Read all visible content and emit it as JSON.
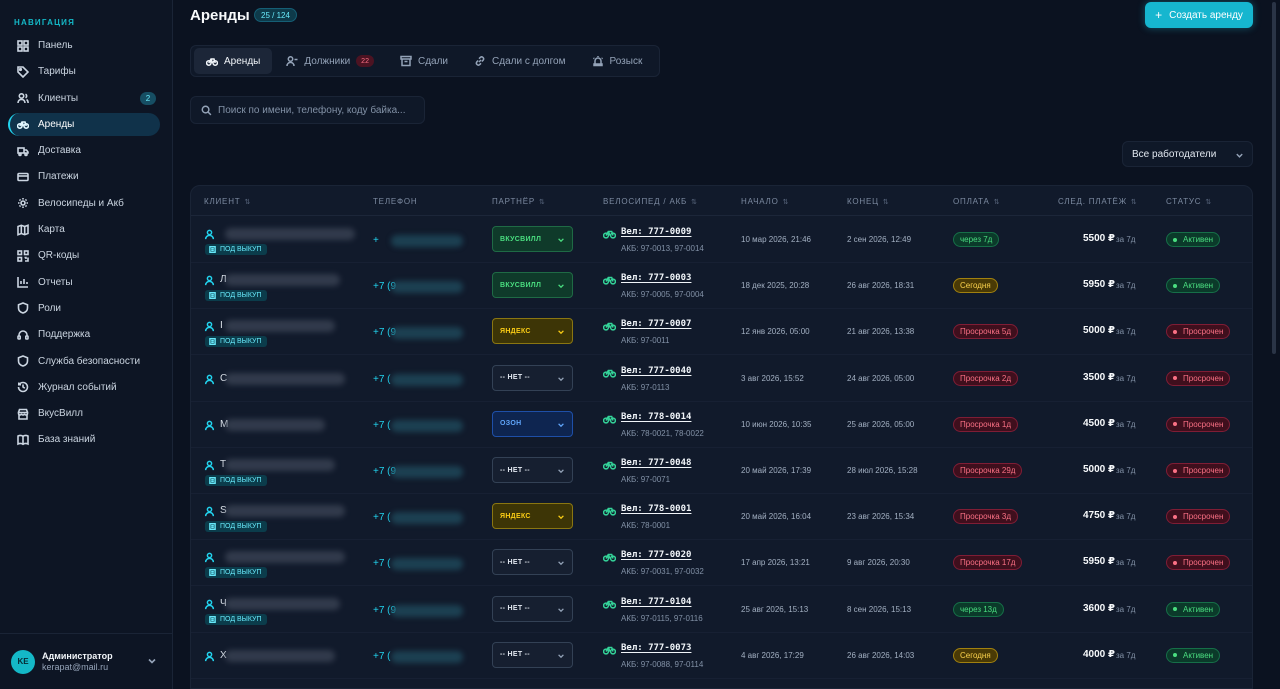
{
  "sidebar": {
    "title": "НАВИГАЦИЯ",
    "items": [
      {
        "label": "Панель",
        "icon": "grid-icon"
      },
      {
        "label": "Тарифы",
        "icon": "tag-icon"
      },
      {
        "label": "Клиенты",
        "icon": "users-icon",
        "badge": "2"
      },
      {
        "label": "Аренды",
        "icon": "bike-icon",
        "active": true
      },
      {
        "label": "Доставка",
        "icon": "truck-icon"
      },
      {
        "label": "Платежи",
        "icon": "card-icon"
      },
      {
        "label": "Велосипеды и Акб",
        "icon": "gear-icon"
      },
      {
        "label": "Карта",
        "icon": "map-icon"
      },
      {
        "label": "QR-коды",
        "icon": "qr-icon"
      },
      {
        "label": "Отчеты",
        "icon": "chart-icon"
      },
      {
        "label": "Роли",
        "icon": "shield-icon"
      },
      {
        "label": "Поддержка",
        "icon": "headset-icon"
      },
      {
        "label": "Служба безопасности",
        "icon": "shield-icon"
      },
      {
        "label": "Журнал событий",
        "icon": "history-icon"
      },
      {
        "label": "ВкусВилл",
        "icon": "store-icon"
      },
      {
        "label": "База знаний",
        "icon": "book-icon"
      }
    ],
    "user": {
      "initials": "KE",
      "name": "Администратор",
      "email": "kerapat@mail.ru"
    }
  },
  "header": {
    "title": "Аренды",
    "count": "25 / 124",
    "create_label": "Создать аренду"
  },
  "tabs": [
    {
      "label": "Аренды",
      "active": true
    },
    {
      "label": "Должники",
      "badge": "22"
    },
    {
      "label": "Сдали"
    },
    {
      "label": "Сдали с долгом"
    },
    {
      "label": "Розыск"
    }
  ],
  "search": {
    "placeholder": "Поиск по имени, телефону, коду байка..."
  },
  "employer_filter": {
    "value": "Все работодатели"
  },
  "table": {
    "columns": [
      "КЛИЕНТ",
      "ТЕЛЕФОН",
      "ПАРТНЁР",
      "ВЕЛОСИПЕД / АКБ",
      "НАЧАЛО",
      "КОНЕЦ",
      "ОПЛАТА",
      "СЛЕД. ПЛАТЁЖ",
      "СТАТУС"
    ],
    "rows": [
      {
        "name": "",
        "buyout": "ПОД ВЫКУП",
        "phone": "+",
        "partner": "ВКУСВИЛЛ",
        "partner_kind": "vkusvill",
        "bike": "Вел: 777-0009",
        "akb": "АКБ: 97-0013, 97-0014",
        "start": "10 мар 2026, 21:46",
        "end": "2 сен 2026, 12:49",
        "payment": "через 7д",
        "payment_kind": "soon",
        "amount": "5500 ₽",
        "period": "за  7д",
        "status": "Активен",
        "status_kind": "active"
      },
      {
        "name": "Л",
        "buyout": "ПОД ВЫКУП",
        "phone": "+7 (9",
        "partner": "ВКУСВИЛЛ",
        "partner_kind": "vkusvill",
        "bike": "Вел: 777-0003",
        "akb": "АКБ: 97-0005, 97-0004",
        "start": "18 дек 2025, 20:28",
        "end": "26 авг 2026, 18:31",
        "payment": "Сегодня",
        "payment_kind": "today",
        "amount": "5950 ₽",
        "period": "за  7д",
        "status": "Активен",
        "status_kind": "active"
      },
      {
        "name": "I",
        "buyout": "ПОД ВЫКУП",
        "phone": "+7 (9",
        "partner": "ЯНДЕКС",
        "partner_kind": "yandex",
        "bike": "Вел: 777-0007",
        "akb": "АКБ: 97-0011",
        "start": "12 янв 2026, 05:00",
        "end": "21 авг 2026, 13:38",
        "payment": "Просрочка 5д",
        "payment_kind": "over",
        "amount": "5000 ₽",
        "period": "за  7д",
        "status": "Просрочен",
        "status_kind": "over"
      },
      {
        "name": "С",
        "buyout": "",
        "phone": "+7 (",
        "partner": "-- НЕТ --",
        "partner_kind": "none",
        "bike": "Вел: 777-0040",
        "akb": "АКБ: 97-0113",
        "start": "3 авг 2026, 15:52",
        "end": "24 авг 2026, 05:00",
        "payment": "Просрочка 2д",
        "payment_kind": "over",
        "amount": "3500 ₽",
        "period": "за  7д",
        "status": "Просрочен",
        "status_kind": "over"
      },
      {
        "name": "М",
        "buyout": "",
        "phone": "+7 (",
        "partner": "ОЗОН",
        "partner_kind": "ozon",
        "bike": "Вел: 778-0014",
        "akb": "АКБ: 78-0021, 78-0022",
        "start": "10 июн 2026, 10:35",
        "end": "25 авг 2026, 05:00",
        "payment": "Просрочка 1д",
        "payment_kind": "over",
        "amount": "4500 ₽",
        "period": "за  7д",
        "status": "Просрочен",
        "status_kind": "over"
      },
      {
        "name": "Т",
        "buyout": "ПОД ВЫКУП",
        "phone": "+7 (9",
        "partner": "-- НЕТ --",
        "partner_kind": "none",
        "bike": "Вел: 777-0048",
        "akb": "АКБ: 97-0071",
        "start": "20 май 2026, 17:39",
        "end": "28 июл 2026, 15:28",
        "payment": "Просрочка 29д",
        "payment_kind": "over",
        "amount": "5000 ₽",
        "period": "за  7д",
        "status": "Просрочен",
        "status_kind": "over"
      },
      {
        "name": "S",
        "buyout": "ПОД ВЫКУП",
        "phone": "+7 (",
        "partner": "ЯНДЕКС",
        "partner_kind": "yandex",
        "bike": "Вел: 778-0001",
        "akb": "АКБ: 78-0001",
        "start": "20 май 2026, 16:04",
        "end": "23 авг 2026, 15:34",
        "payment": "Просрочка 3д",
        "payment_kind": "over",
        "amount": "4750 ₽",
        "period": "за  7д",
        "status": "Просрочен",
        "status_kind": "over"
      },
      {
        "name": "",
        "buyout": "ПОД ВЫКУП",
        "phone": "+7 (",
        "partner": "-- НЕТ --",
        "partner_kind": "none",
        "bike": "Вел: 777-0020",
        "akb": "АКБ: 97-0031, 97-0032",
        "start": "17 апр 2026, 13:21",
        "end": "9 авг 2026, 20:30",
        "payment": "Просрочка 17д",
        "payment_kind": "over",
        "amount": "5950 ₽",
        "period": "за  7д",
        "status": "Просрочен",
        "status_kind": "over"
      },
      {
        "name": "Ч",
        "buyout": "ПОД ВЫКУП",
        "phone": "+7 (9",
        "partner": "-- НЕТ --",
        "partner_kind": "none",
        "bike": "Вел: 777-0104",
        "akb": "АКБ: 97-0115, 97-0116",
        "start": "25 авг 2026, 15:13",
        "end": "8 сен 2026, 15:13",
        "payment": "через 13д",
        "payment_kind": "soon",
        "amount": "3600 ₽",
        "period": "за  7д",
        "status": "Активен",
        "status_kind": "active"
      },
      {
        "name": "Х",
        "buyout": "",
        "phone": "+7 (",
        "partner": "-- НЕТ --",
        "partner_kind": "none",
        "bike": "Вел: 777-0073",
        "akb": "АКБ: 97-0088, 97-0114",
        "start": "4 авг 2026, 17:29",
        "end": "26 авг 2026, 14:03",
        "payment": "Сегодня",
        "payment_kind": "today",
        "amount": "4000 ₽",
        "period": "за  7д",
        "status": "Активен",
        "status_kind": "active"
      }
    ]
  }
}
